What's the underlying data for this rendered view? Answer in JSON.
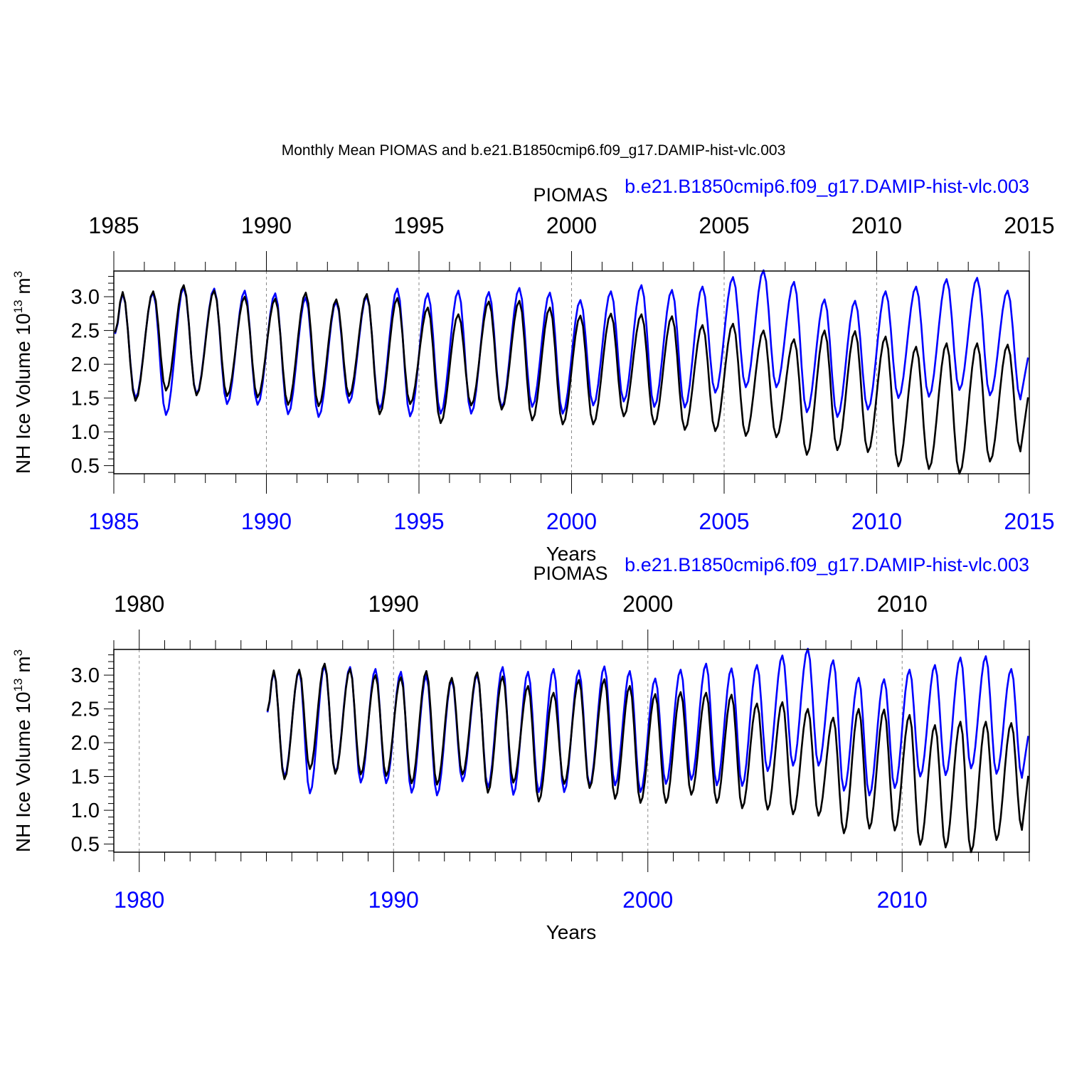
{
  "title": "Monthly Mean PIOMAS and b.e21.B1850cmip6.f09_g17.DAMIP-hist-vlc.003",
  "colors": {
    "obs": "#000000",
    "model": "#0000ff",
    "grid": "#888888",
    "axis": "#000000"
  },
  "chart_data": [
    {
      "type": "line",
      "panel": "top",
      "legend_left": "PIOMAS",
      "legend_right": "b.e21.B1850cmip6.f09_g17.DAMIP-hist-vlc.003",
      "xlabel": "Years",
      "ylabel": "NH Ice Volume 10",
      "ylabel_exp": "13",
      "ylabel_unit": " m",
      "ylabel_unit_exp": "3",
      "xlim": [
        1985,
        2015
      ],
      "ylim": [
        0.38,
        3.38
      ],
      "x_ticks": [
        1985,
        1990,
        1995,
        2000,
        2005,
        2010,
        2015
      ],
      "x_tick_labels_top": [
        "1985",
        "1990",
        "1995",
        "2000",
        "2005",
        "2010",
        "2015"
      ],
      "x_tick_labels_bottom": [
        "1985",
        "1990",
        "1995",
        "2000",
        "2005",
        "2010",
        "2015"
      ],
      "y_ticks": [
        0.5,
        1.0,
        1.5,
        2.0,
        2.5,
        3.0
      ],
      "y_tick_labels": [
        "0.5",
        "1.0",
        "1.5",
        "2.0",
        "2.5",
        "3.0"
      ],
      "grid_x": [
        1990,
        1995,
        2000,
        2005,
        2010
      ]
    },
    {
      "type": "line",
      "panel": "bottom",
      "legend_left": "PIOMAS",
      "legend_right": "b.e21.B1850cmip6.f09_g17.DAMIP-hist-vlc.003",
      "xlabel": "Years",
      "ylabel": "NH Ice Volume 10",
      "ylabel_exp": "13",
      "ylabel_unit": " m",
      "ylabel_unit_exp": "3",
      "xlim": [
        1979,
        2015
      ],
      "ylim": [
        0.38,
        3.38
      ],
      "x_ticks": [
        1980,
        1990,
        2000,
        2010
      ],
      "x_tick_labels_top": [
        "1980",
        "1990",
        "2000",
        "2010"
      ],
      "x_tick_labels_bottom": [
        "1980",
        "1990",
        "2000",
        "2010"
      ],
      "y_ticks": [
        0.5,
        1.0,
        1.5,
        2.0,
        2.5,
        3.0
      ],
      "y_tick_labels": [
        "0.5",
        "1.0",
        "1.5",
        "2.0",
        "2.5",
        "3.0"
      ],
      "grid_x": [
        1980,
        1990,
        2000,
        2010
      ]
    }
  ],
  "series": {
    "start_year": 1985,
    "piomas_annual": {
      "years": [
        1985,
        1986,
        1987,
        1988,
        1989,
        1990,
        1991,
        1992,
        1993,
        1994,
        1995,
        1996,
        1997,
        1998,
        1999,
        2000,
        2001,
        2002,
        2003,
        2004,
        2005,
        2006,
        2007,
        2008,
        2009,
        2010,
        2011,
        2012,
        2013,
        2014
      ],
      "max": [
        3.07,
        3.08,
        3.17,
        3.09,
        3.0,
        2.97,
        3.06,
        2.96,
        3.04,
        2.98,
        2.84,
        2.74,
        2.93,
        2.94,
        2.84,
        2.72,
        2.75,
        2.74,
        2.71,
        2.58,
        2.6,
        2.5,
        2.37,
        2.5,
        2.49,
        2.41,
        2.26,
        2.31,
        2.31,
        2.29
      ],
      "min": [
        1.46,
        1.61,
        1.54,
        1.53,
        1.51,
        1.4,
        1.38,
        1.53,
        1.26,
        1.41,
        1.13,
        1.39,
        1.33,
        1.17,
        1.11,
        1.11,
        1.23,
        1.11,
        1.03,
        1.01,
        0.94,
        0.92,
        0.66,
        0.73,
        0.7,
        0.49,
        0.45,
        0.38,
        0.56,
        0.71
      ]
    },
    "model_annual": {
      "years": [
        1985,
        1986,
        1987,
        1988,
        1989,
        1990,
        1991,
        1992,
        1993,
        1994,
        1995,
        1996,
        1997,
        1998,
        1999,
        2000,
        2001,
        2002,
        2003,
        2004,
        2005,
        2006,
        2007,
        2008,
        2009,
        2010,
        2011,
        2012,
        2013,
        2014
      ],
      "max": [
        3.05,
        3.06,
        3.14,
        3.12,
        3.09,
        3.05,
        2.99,
        2.93,
        3.01,
        3.12,
        3.05,
        3.09,
        3.07,
        3.13,
        3.06,
        2.95,
        3.08,
        3.17,
        3.1,
        3.15,
        3.29,
        3.39,
        3.22,
        2.96,
        2.94,
        3.08,
        3.15,
        3.26,
        3.28,
        3.09
      ],
      "min": [
        1.5,
        1.25,
        1.56,
        1.41,
        1.4,
        1.26,
        1.22,
        1.43,
        1.34,
        1.23,
        1.27,
        1.27,
        1.36,
        1.37,
        1.27,
        1.39,
        1.45,
        1.37,
        1.36,
        1.58,
        1.66,
        1.66,
        1.29,
        1.22,
        1.33,
        1.5,
        1.52,
        1.62,
        1.54,
        1.48
      ]
    },
    "end_values": {
      "piomas": 1.51,
      "model": 2.1
    }
  }
}
